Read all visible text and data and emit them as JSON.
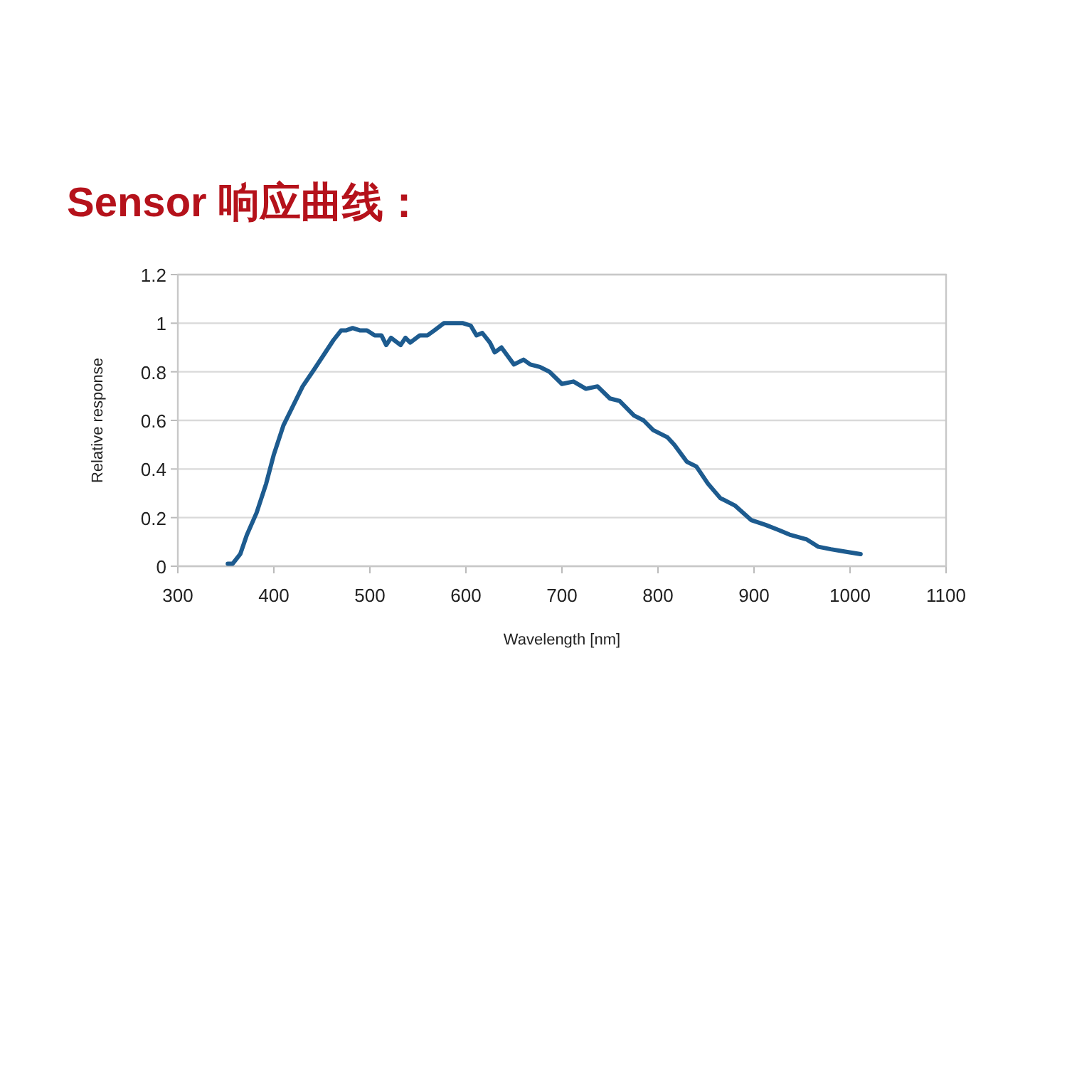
{
  "chart_data": {
    "type": "line",
    "title": "Sensor 响应曲线：",
    "xlabel": "Wavelength [nm]",
    "ylabel": "Relative response",
    "x": [
      352,
      357,
      365,
      372,
      382,
      392,
      400,
      410,
      420,
      430,
      442,
      452,
      462,
      470,
      475,
      482,
      490,
      497,
      505,
      512,
      517,
      522,
      532,
      537,
      542,
      552,
      560,
      567,
      577,
      587,
      597,
      605,
      611,
      617,
      625,
      630,
      637,
      650,
      660,
      667,
      677,
      687,
      700,
      712,
      725,
      737,
      750,
      760,
      775,
      785,
      795,
      810,
      817,
      830,
      840,
      852,
      865,
      880,
      897,
      912,
      925,
      937,
      955,
      967,
      980,
      995,
      1011
    ],
    "series": [
      {
        "color": "#1d5b8f",
        "values": [
          0.01,
          0.01,
          0.05,
          0.13,
          0.22,
          0.34,
          0.46,
          0.58,
          0.66,
          0.74,
          0.81,
          0.87,
          0.93,
          0.97,
          0.97,
          0.98,
          0.97,
          0.97,
          0.95,
          0.95,
          0.91,
          0.94,
          0.91,
          0.94,
          0.92,
          0.95,
          0.95,
          0.97,
          1.0,
          1.0,
          1.0,
          0.99,
          0.95,
          0.96,
          0.92,
          0.88,
          0.9,
          0.83,
          0.85,
          0.83,
          0.82,
          0.8,
          0.75,
          0.76,
          0.73,
          0.74,
          0.69,
          0.68,
          0.62,
          0.6,
          0.56,
          0.53,
          0.5,
          0.43,
          0.41,
          0.34,
          0.28,
          0.25,
          0.19,
          0.17,
          0.15,
          0.13,
          0.11,
          0.08,
          0.07,
          0.06,
          0.05
        ]
      }
    ],
    "xlim": [
      300,
      1100
    ],
    "ylim": [
      0,
      1.2
    ],
    "xticks": [
      300,
      400,
      500,
      600,
      700,
      800,
      900,
      1000,
      1100
    ],
    "yticks": [
      0,
      0.2,
      0.4,
      0.6,
      0.8,
      1,
      1.2
    ],
    "grid": "y"
  }
}
